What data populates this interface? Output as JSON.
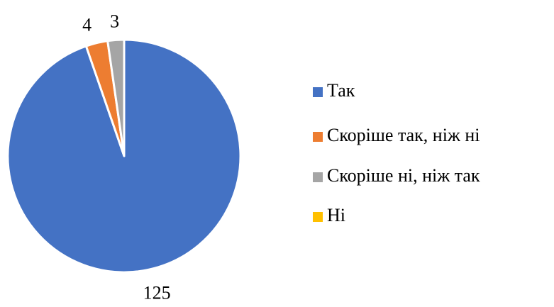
{
  "chart_data": {
    "type": "pie",
    "categories": [
      "Так",
      "Скоріше так, ніж ні",
      "Скоріше ні, ніж так",
      "Ні"
    ],
    "values": [
      125,
      4,
      3,
      0
    ],
    "colors": [
      "#4472c4",
      "#ed7d31",
      "#a5a5a5",
      "#ffc000"
    ],
    "legend": "right"
  }
}
